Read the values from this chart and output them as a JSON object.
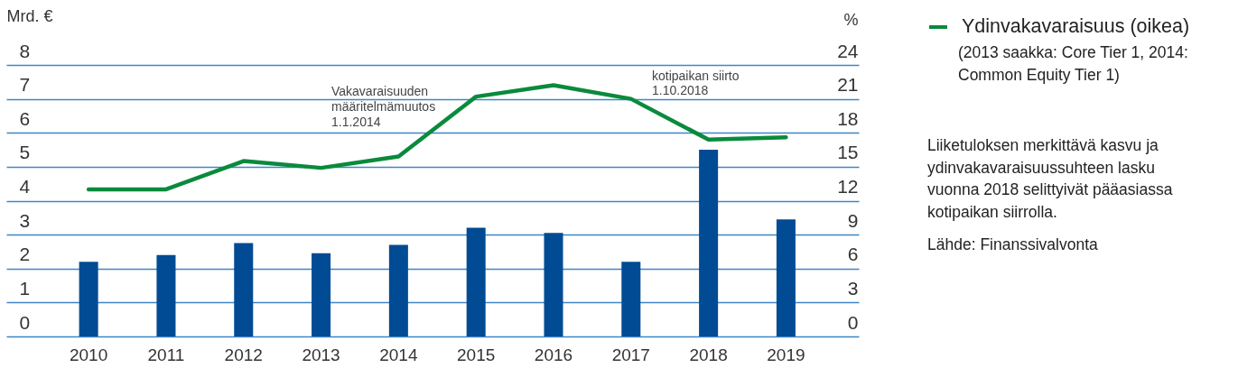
{
  "chart_data": {
    "type": "bar",
    "categories": [
      "2010",
      "2011",
      "2012",
      "2013",
      "2014",
      "2015",
      "2016",
      "2017",
      "2018",
      "2019"
    ],
    "ylabel": "Mrd. €",
    "y2label": "%",
    "ylim": [
      0,
      8
    ],
    "yticks": [
      0,
      1,
      2,
      3,
      4,
      5,
      6,
      7,
      8
    ],
    "y2lim": [
      0,
      24
    ],
    "y2ticks": [
      0,
      3,
      6,
      9,
      12,
      15,
      18,
      21,
      24
    ],
    "grid": "y",
    "legend": "top right",
    "series": [
      {
        "color": "#004b93",
        "values": [
          2.2,
          2.4,
          2.75,
          2.45,
          2.7,
          3.2,
          3.05,
          2.2,
          5.5,
          3.45
        ]
      },
      {
        "type": "line",
        "name": "Ydinvakavaraisuus (oikea)",
        "color": "#0a8a3c",
        "axis": "y2",
        "values": [
          13,
          13,
          15.5,
          14.9,
          15.9,
          21.2,
          22.2,
          21,
          17.4,
          17.6
        ]
      }
    ],
    "annotations": [
      "Vakavaraisuuden määritelmämuutos 1.1.2014",
      "kotipaikan siirto 1.10.2018",
      "(2013 saakka: Core Tier 1, 2014: Common Equity Tier 1)",
      "Liiketuloksen merkittävä kasvu ja ydinvakavaraisuussuhteen lasku vuonna 2018 selittyivät pääasiassa kotipaikan siirrolla.",
      "Lähde: Finanssivalvonta"
    ]
  }
}
